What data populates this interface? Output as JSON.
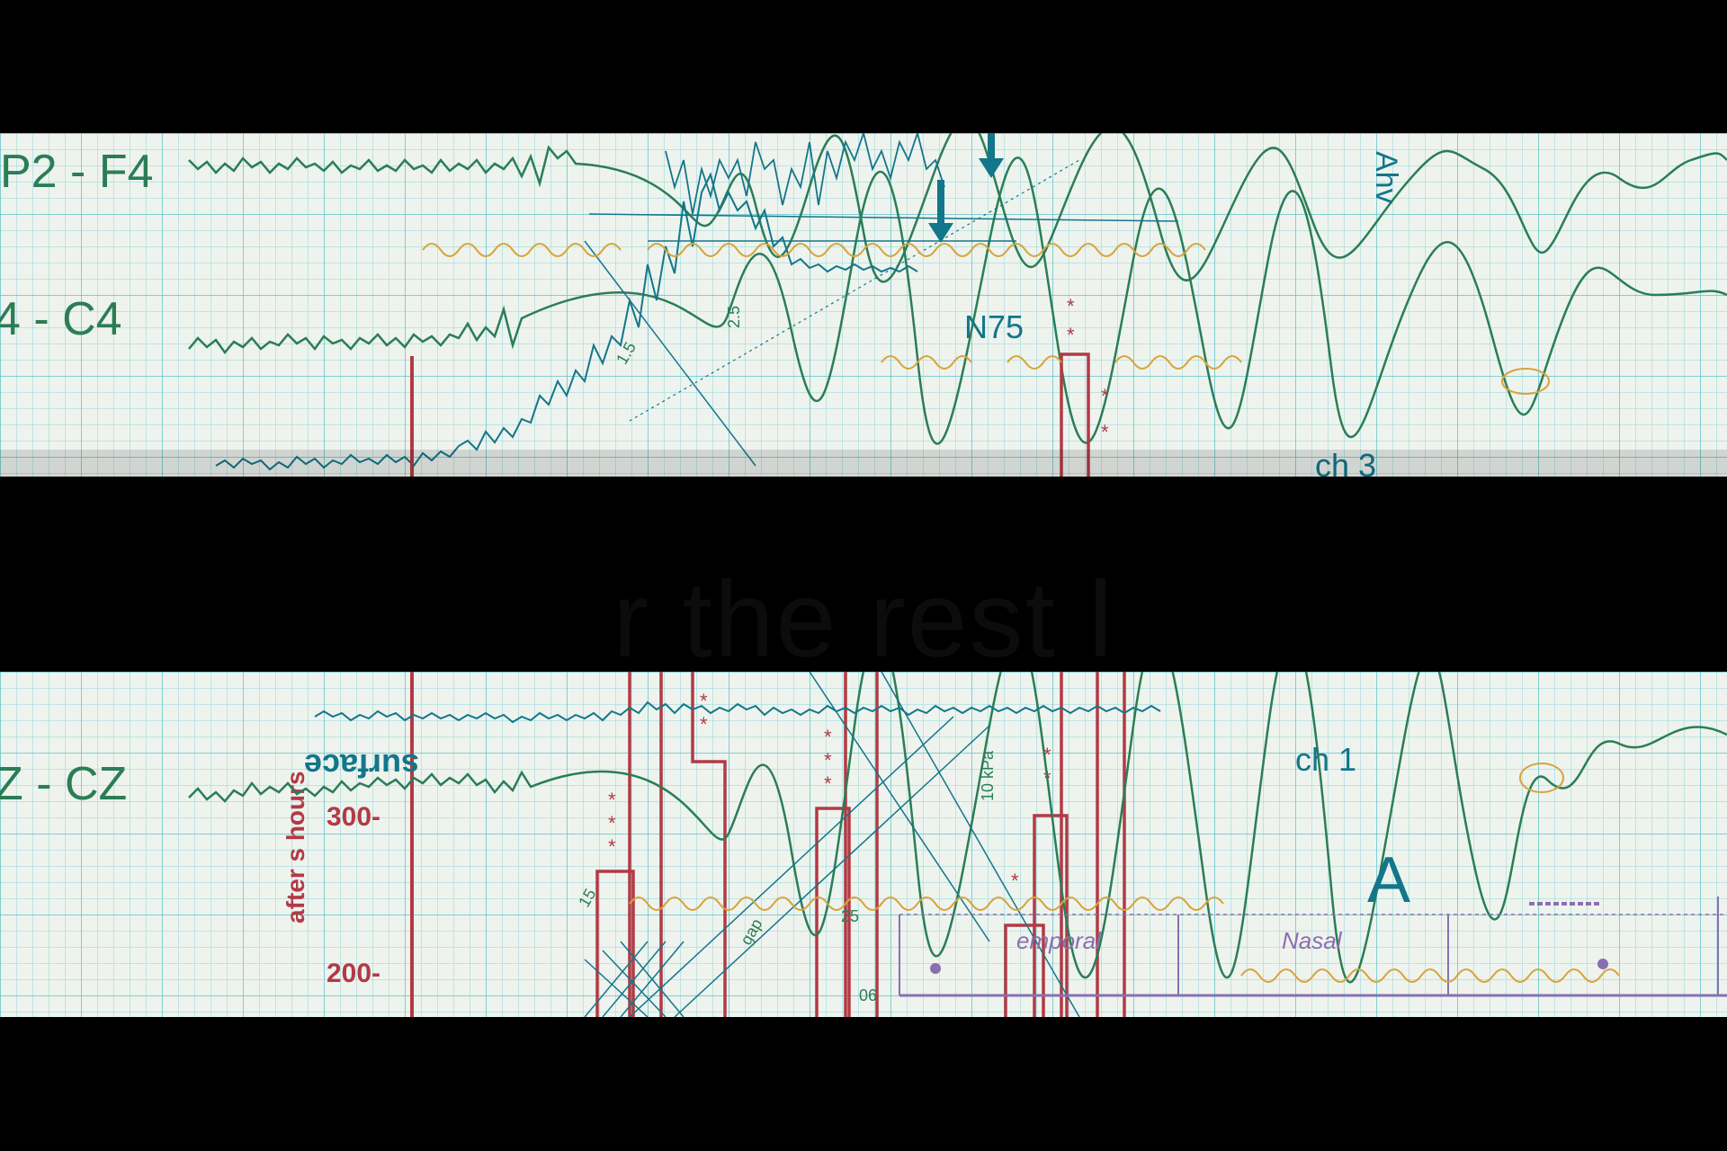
{
  "colors": {
    "background": "#000000",
    "paper": "#eef3ee",
    "grid": "#7ccfd3",
    "trace_green": "#2b7d56",
    "trace_teal": "#13768a",
    "ink_orange": "#d8a43a",
    "ink_red": "#b23a44",
    "ink_purple": "#8a6fb0"
  },
  "top_strip": {
    "channel_1": "P2 - F4",
    "channel_2": "4 - C4",
    "label_n75": "N75",
    "label_ch3": "ch 3",
    "label_ahv": "Ahv",
    "label_2_5": "2.5",
    "label_1_5": "1.5"
  },
  "bottom_strip": {
    "channel_1": "Z - CZ",
    "label_surface": "surface",
    "axis_label": "after  s hours",
    "tick_300": "300-",
    "tick_200": "200-",
    "label_ch1": "ch 1",
    "label_a": "A",
    "label_temporal": "emporal",
    "label_nasal": "Nasal",
    "label_10kpa": "10 kPa",
    "label_gap": "gap",
    "label_25": "25",
    "label_15": "15",
    "label_06": "06"
  },
  "overlay_caption": "r                  the  rest     l"
}
